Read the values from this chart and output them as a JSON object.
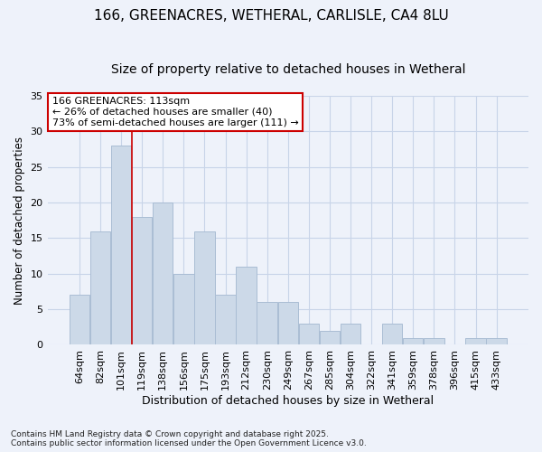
{
  "title": "166, GREENACRES, WETHERAL, CARLISLE, CA4 8LU",
  "subtitle": "Size of property relative to detached houses in Wetheral",
  "xlabel": "Distribution of detached houses by size in Wetheral",
  "ylabel": "Number of detached properties",
  "categories": [
    "64sqm",
    "82sqm",
    "101sqm",
    "119sqm",
    "138sqm",
    "156sqm",
    "175sqm",
    "193sqm",
    "212sqm",
    "230sqm",
    "249sqm",
    "267sqm",
    "285sqm",
    "304sqm",
    "322sqm",
    "341sqm",
    "359sqm",
    "378sqm",
    "396sqm",
    "415sqm",
    "433sqm"
  ],
  "values": [
    7,
    16,
    28,
    18,
    20,
    10,
    16,
    7,
    11,
    6,
    6,
    3,
    2,
    3,
    0,
    3,
    1,
    1,
    0,
    1,
    1
  ],
  "bar_color": "#ccd9e8",
  "bar_edge_color": "#aabdd4",
  "grid_color": "#c8d4e8",
  "background_color": "#eef2fa",
  "vline_x_index": 2.5,
  "vline_color": "#cc0000",
  "annotation_line1": "166 GREENACRES: 113sqm",
  "annotation_line2": "← 26% of detached houses are smaller (40)",
  "annotation_line3": "73% of semi-detached houses are larger (111) →",
  "annotation_box_color": "#ffffff",
  "annotation_box_edge": "#cc0000",
  "footer_text": "Contains HM Land Registry data © Crown copyright and database right 2025.\nContains public sector information licensed under the Open Government Licence v3.0.",
  "ylim": [
    0,
    35
  ],
  "yticks": [
    0,
    5,
    10,
    15,
    20,
    25,
    30,
    35
  ],
  "title_fontsize": 11,
  "subtitle_fontsize": 10,
  "xlabel_fontsize": 9,
  "ylabel_fontsize": 8.5,
  "tick_fontsize": 8,
  "annotation_fontsize": 8,
  "footer_fontsize": 6.5
}
